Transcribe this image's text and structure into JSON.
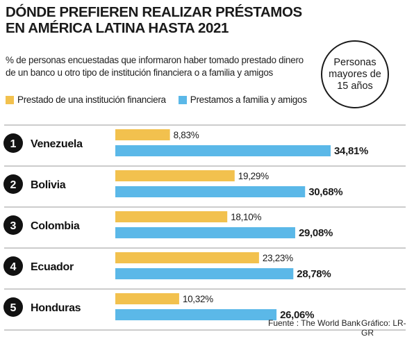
{
  "title": "DÓNDE PREFIEREN REALIZAR  PRÉSTAMOS EN AMÉRICA LATINA HASTA 2021",
  "subtitle": "% de personas encuestadas que informaron haber tomado prestado dinero de un banco u otro tipo de institución financiera o a familia y amigos",
  "badge": "Personas mayores de 15 años",
  "source": "Fuente : The World Bank",
  "credit": "Gráfico: LR-GR",
  "colors": {
    "financial": "#f2c14e",
    "family": "#5bb8e8",
    "rank_circle": "#111111"
  },
  "chart_data": {
    "type": "bar",
    "orientation": "horizontal",
    "title": "DÓNDE PREFIEREN REALIZAR  PRÉSTAMOS EN AMÉRICA LATINA HASTA 2021",
    "categories": [
      "Venezuela",
      "Bolivia",
      "Colombia",
      "Ecuador",
      "Honduras"
    ],
    "ranks": [
      "1",
      "2",
      "3",
      "4",
      "5"
    ],
    "series": [
      {
        "name": "Prestado de una institución financiera",
        "values": [
          8.83,
          19.29,
          18.1,
          23.23,
          10.32
        ],
        "labels": [
          "8,83%",
          "19,29%",
          "18,10%",
          "23,23%",
          "10,32%"
        ]
      },
      {
        "name": "Prestamos a familia y amigos",
        "values": [
          34.81,
          30.68,
          29.08,
          28.78,
          26.06
        ],
        "labels": [
          "34,81%",
          "30,68%",
          "29,08%",
          "28,78%",
          "26,06%"
        ]
      }
    ],
    "xlim": [
      0,
      35
    ],
    "legend": "top-left",
    "grid": false
  }
}
